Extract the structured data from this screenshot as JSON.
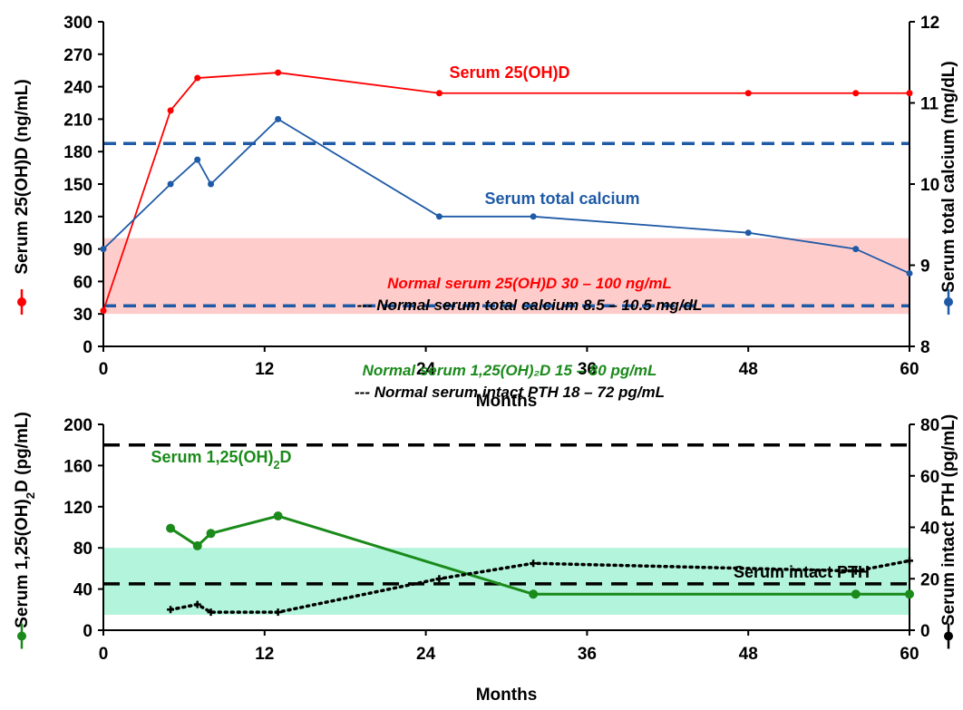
{
  "chart_data": [
    {
      "type": "line",
      "x_ticks": [
        "0",
        "12",
        "24",
        "36",
        "48",
        "60"
      ],
      "xlim": [
        0,
        60
      ],
      "xlabel": "Months",
      "ylabel_left": "Serum 25(OH)D (ng/mL)",
      "ylabel_right": "Serum total calcium (mg/dL)",
      "ylim_left": [
        0,
        300
      ],
      "y_ticks_left": [
        "0",
        "30",
        "60",
        "90",
        "120",
        "150",
        "180",
        "210",
        "240",
        "270",
        "300"
      ],
      "ylim_right": [
        8,
        12
      ],
      "y_ticks_right": [
        "8",
        "9",
        "10",
        "11",
        "12"
      ],
      "series": [
        {
          "name": "Serum 25(OH)D",
          "axis": "left",
          "color": "#ff0000",
          "line_style": "solid",
          "x": [
            0,
            5,
            7,
            13,
            25,
            48,
            56,
            60
          ],
          "y": [
            33,
            218,
            248,
            253,
            234,
            234,
            234,
            234
          ]
        },
        {
          "name": "Serum total calcium",
          "axis": "right",
          "color": "#1f5aa6",
          "line_style": "solid",
          "x": [
            0,
            5,
            7,
            8,
            13,
            25,
            32,
            48,
            56,
            60
          ],
          "y": [
            9.2,
            10.0,
            10.3,
            10.0,
            10.8,
            9.6,
            9.6,
            9.4,
            9.2,
            8.9
          ]
        }
      ],
      "normal_band": {
        "axis": "left",
        "range": [
          30,
          100
        ],
        "color": "#ffcccc"
      },
      "reference_lines": {
        "axis": "right",
        "values": [
          8.5,
          10.5
        ],
        "color": "#1f5aa6",
        "style": "dashed"
      },
      "annotations": [
        {
          "text": "Normal serum 25(OH)D 30 – 100 ng/mL",
          "color": "#ff0000"
        },
        {
          "text": "--- Normal serum total calcium 8.5 – 10.5 mg/dL",
          "color": "#000000"
        }
      ]
    },
    {
      "type": "line",
      "x_ticks": [
        "0",
        "12",
        "24",
        "36",
        "48",
        "60"
      ],
      "xlim": [
        0,
        60
      ],
      "xlabel": "Months",
      "ylabel_left": "Serum 1,25(OH)2D (pg/mL)",
      "ylabel_right": "Serum intact PTH (pg/mL)",
      "ylim_left": [
        0,
        200
      ],
      "y_ticks_left": [
        "0",
        "40",
        "80",
        "120",
        "160",
        "200"
      ],
      "ylim_right": [
        0,
        80
      ],
      "y_ticks_right": [
        "0",
        "20",
        "40",
        "60",
        "80"
      ],
      "series": [
        {
          "name": "Serum 1,25(OH)2D",
          "axis": "left",
          "color": "#1a8a1a",
          "line_style": "solid",
          "x": [
            5,
            7,
            8,
            13,
            32,
            56,
            60
          ],
          "y": [
            99,
            82,
            94,
            111,
            35,
            35,
            35
          ]
        },
        {
          "name": "Serum intact PTH",
          "axis": "right",
          "color": "#000000",
          "line_style": "dotted",
          "x": [
            5,
            7,
            8,
            13,
            25,
            32,
            56,
            60
          ],
          "y": [
            8,
            10,
            7,
            7,
            20,
            26,
            23,
            27
          ]
        }
      ],
      "normal_band": {
        "axis": "left",
        "range": [
          15,
          80
        ],
        "color": "#b3f5dc"
      },
      "reference_lines": {
        "axis": "right",
        "values": [
          18,
          72
        ],
        "color": "#000000",
        "style": "dashed"
      },
      "annotations": [
        {
          "text": "Normal serum 1,25(OH)₂D 15 – 80 pg/mL",
          "color": "#1a8a1a"
        },
        {
          "text": "--- Normal serum intact PTH 18 – 72 pg/mL",
          "color": "#000000"
        }
      ]
    }
  ]
}
